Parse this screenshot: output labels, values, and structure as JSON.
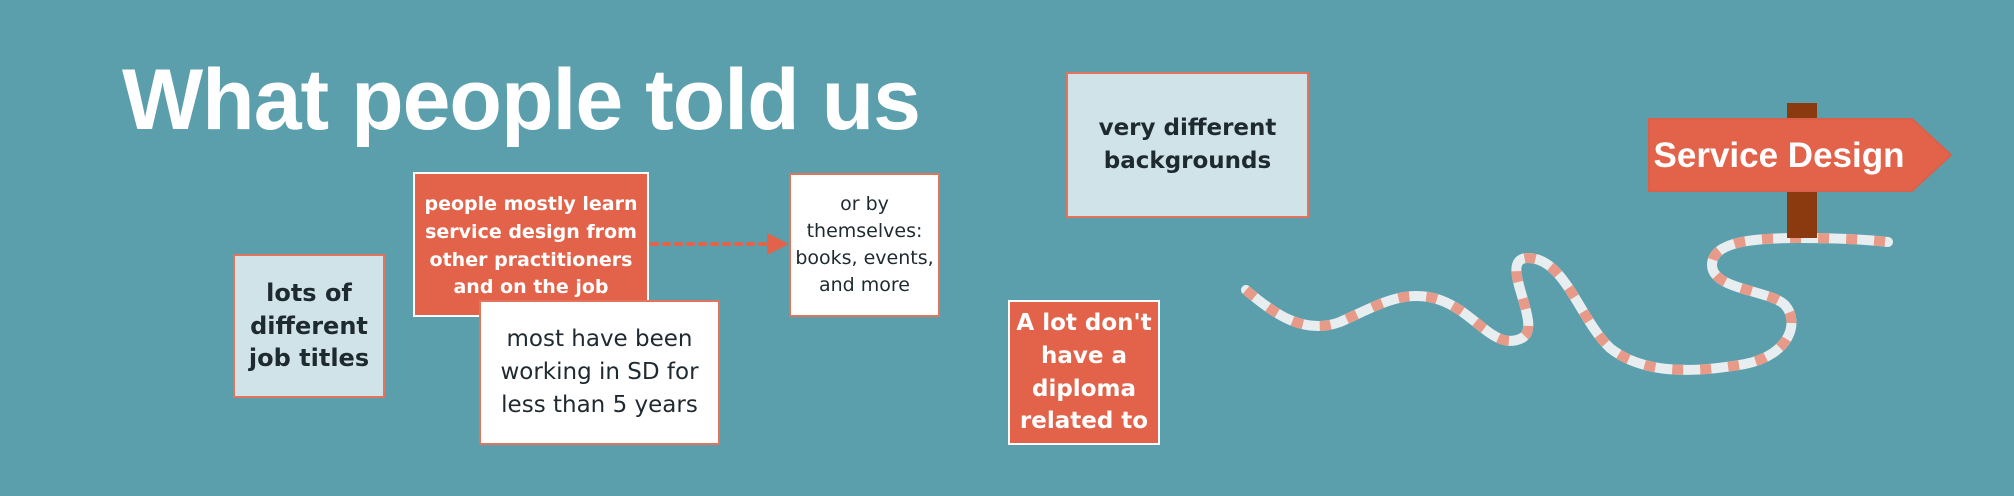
{
  "title": "What people told us",
  "notes": {
    "job_titles": "lots of different job titles",
    "learn": "people mostly learn service design from other practitioners and on the job",
    "years": "most have been working in SD for less than 5 years",
    "by_themselves": "or by themselves: books, events, and more",
    "backgrounds": "very different backgrounds",
    "diploma": "A lot don't have a diploma related to"
  },
  "signpost": {
    "label": "Service Design"
  },
  "colors": {
    "background": "#5b9fac",
    "accent_orange": "#e2634a",
    "light_note": "#d0e3e8",
    "post_brown": "#8b3a0f",
    "path_white": "#e8eef0",
    "path_dots": "#e89a88"
  }
}
